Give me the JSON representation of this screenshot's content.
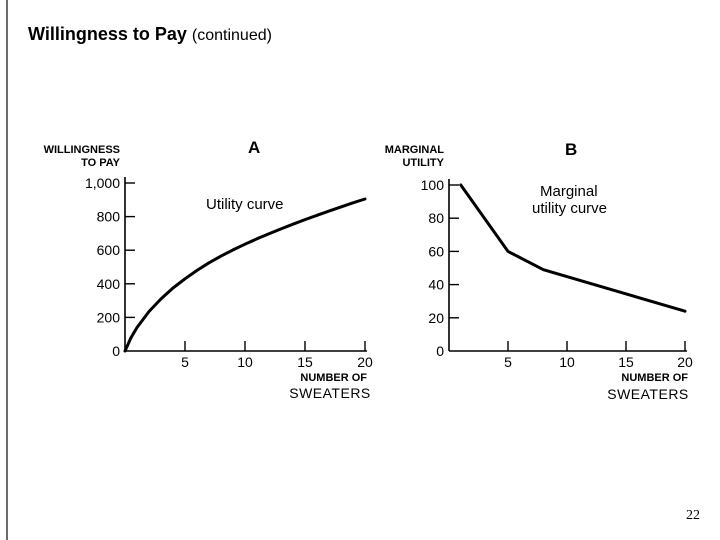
{
  "slide": {
    "title": "Willingness to Pay",
    "title_suffix": "(continued)",
    "page_number": "22"
  },
  "chart_data": [
    {
      "type": "line",
      "panel_label": "A",
      "ylabel": [
        "WILLINGNESS",
        "TO PAY"
      ],
      "xlabel": [
        "NUMBER OF",
        "SWEATERS"
      ],
      "xlim": [
        0,
        20
      ],
      "ylim": [
        0,
        1000
      ],
      "x_ticks": [
        5,
        10,
        15,
        20
      ],
      "y_ticks": [
        0,
        200,
        400,
        600,
        800,
        1000
      ],
      "x_tick_labels": [
        "5",
        "10",
        "15",
        "20"
      ],
      "y_tick_labels": [
        "0",
        "200",
        "400",
        "600",
        "800",
        "1,000"
      ],
      "annotation": "Utility curve",
      "series": [
        {
          "x": [
            0,
            0.5,
            1,
            2,
            3,
            4,
            5,
            6,
            7,
            8,
            9,
            10,
            11,
            12,
            13,
            14,
            15,
            16,
            17,
            18,
            19,
            20
          ],
          "y": [
            0,
            80,
            140,
            235,
            310,
            375,
            430,
            480,
            525,
            565,
            602,
            636,
            668,
            698,
            727,
            755,
            782,
            808,
            833,
            858,
            882,
            905
          ]
        }
      ],
      "line_color": "#000000"
    },
    {
      "type": "line",
      "panel_label": "B",
      "ylabel": [
        "MARGINAL",
        "UTILITY"
      ],
      "xlabel": [
        "NUMBER OF",
        "SWEATERS"
      ],
      "xlim": [
        0,
        20
      ],
      "ylim": [
        0,
        100
      ],
      "x_ticks": [
        5,
        10,
        15,
        20
      ],
      "y_ticks": [
        0,
        20,
        40,
        60,
        80,
        100
      ],
      "x_tick_labels": [
        "5",
        "10",
        "15",
        "20"
      ],
      "y_tick_labels": [
        "0",
        "20",
        "40",
        "60",
        "80",
        "100"
      ],
      "annotation": [
        "Marginal",
        "utility curve"
      ],
      "series": [
        {
          "x": [
            1,
            5,
            8,
            20
          ],
          "y": [
            100,
            60,
            49,
            24
          ]
        }
      ],
      "line_color": "#000000"
    }
  ]
}
